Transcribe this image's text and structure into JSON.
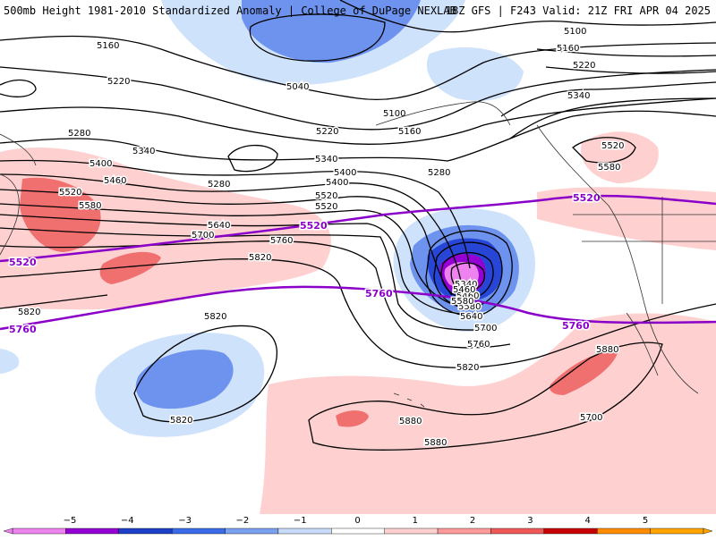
{
  "header": {
    "left_title": "500mb Height 1981-2010 Standardized Anomaly | College of DuPage NEXLAB",
    "right_title": "18Z GFS | F243 Valid: 21Z FRI APR 04 2025"
  },
  "contour_labels": [
    "5040",
    "5100",
    "5100",
    "5160",
    "5160",
    "5160",
    "5220",
    "5220",
    "5220",
    "5280",
    "5280",
    "5280",
    "5340",
    "5340",
    "5340",
    "5400",
    "5460",
    "5520",
    "5580",
    "5640",
    "5700",
    "5760",
    "5820",
    "5820",
    "5820",
    "5820",
    "5820",
    "5880",
    "5880",
    "5880",
    "5340",
    "5400",
    "5460",
    "5520",
    "5580",
    "5640",
    "5700",
    "5760",
    "5400",
    "5460",
    "5520",
    "5580",
    "5520",
    "5580",
    "5700"
  ],
  "reference_labels": [
    "5520",
    "5520",
    "5520",
    "5760",
    "5760",
    "5760"
  ],
  "colorbar": {
    "ticks": [
      "−5",
      "−4",
      "−3",
      "−2",
      "−1",
      "0",
      "1",
      "2",
      "3",
      "4",
      "5"
    ],
    "colors": [
      "#ee82ee",
      "#9400d3",
      "#1e40c8",
      "#3a6be8",
      "#7aa0f0",
      "#c8dcfa",
      "#ffffff",
      "#ffd0d0",
      "#ff9a9a",
      "#f05858",
      "#c80000",
      "#ff8c00",
      "#ffa500"
    ]
  },
  "colors": {
    "reference_contour": "#8b00c9",
    "positive_anomaly_light": "#ffd0d0",
    "positive_anomaly_medium": "#f07070",
    "negative_anomaly_light": "#cfe2fb",
    "negative_anomaly_medium": "#6d93ee",
    "negative_anomaly_strong": "#2746d6",
    "negative_anomaly_extreme": "#ee82ee"
  }
}
